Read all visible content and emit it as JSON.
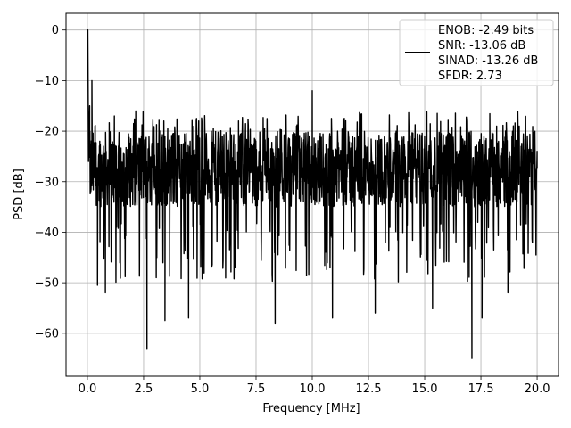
{
  "chart_data": {
    "type": "line",
    "title": "",
    "xlabel": "Frequency [MHz]",
    "ylabel": "PSD [dB]",
    "xlim": [
      -0.95,
      20.95
    ],
    "ylim": [
      -68.5,
      3.3
    ],
    "x_ticks": [
      0.0,
      2.5,
      5.0,
      7.5,
      10.0,
      12.5,
      15.0,
      17.5,
      20.0
    ],
    "x_tick_labels": [
      "0.0",
      "2.5",
      "5.0",
      "7.5",
      "10.0",
      "12.5",
      "15.0",
      "17.5",
      "20.0"
    ],
    "y_ticks": [
      0,
      -10,
      -20,
      -30,
      -40,
      -50,
      -60
    ],
    "y_tick_labels": [
      "0",
      "−10",
      "−20",
      "−30",
      "−40",
      "−50",
      "−60"
    ],
    "grid": true,
    "legend_position": "top-right",
    "series": [
      {
        "name": "ENOB: -2.49 bits\nSNR: -13.06 dB\nSINAD: -13.26 dB\nSFDR: 2.73",
        "color": "#000000",
        "noise_band": {
          "typical_low_db": -35,
          "typical_high_db": -20
        },
        "points": [
          [
            0.0,
            -4
          ],
          [
            0.02,
            0
          ],
          [
            0.05,
            -26
          ],
          [
            0.1,
            -15
          ],
          [
            0.15,
            -32
          ],
          [
            0.2,
            -10
          ],
          [
            0.35,
            -29
          ],
          [
            0.45,
            -50.5
          ],
          [
            0.55,
            -22
          ],
          [
            0.8,
            -52
          ],
          [
            1.2,
            -17
          ],
          [
            1.3,
            -39
          ],
          [
            2.15,
            -16
          ],
          [
            2.65,
            -63
          ],
          [
            3.4,
            -18
          ],
          [
            3.45,
            -57.5
          ],
          [
            4.5,
            -57
          ],
          [
            4.95,
            -18
          ],
          [
            6.0,
            -21
          ],
          [
            8.35,
            -58
          ],
          [
            9.3,
            -19
          ],
          [
            10.0,
            -12
          ],
          [
            10.9,
            -57
          ],
          [
            12.8,
            -56
          ],
          [
            15.35,
            -55
          ],
          [
            15.9,
            -23
          ],
          [
            17.1,
            -65
          ],
          [
            17.55,
            -57
          ],
          [
            18.2,
            -19
          ],
          [
            18.7,
            -52
          ],
          [
            19.2,
            -20
          ],
          [
            19.9,
            -22
          ],
          [
            20.0,
            -24
          ]
        ]
      }
    ],
    "legend_lines": [
      "ENOB: -2.49 bits",
      "SNR: -13.06 dB",
      "SINAD: -13.26 dB",
      "SFDR: 2.73"
    ]
  }
}
